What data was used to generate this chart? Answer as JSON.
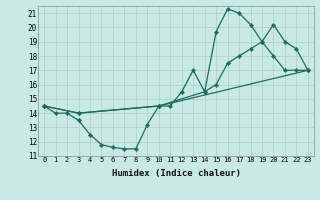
{
  "xlabel": "Humidex (Indice chaleur)",
  "xlim": [
    -0.5,
    23.5
  ],
  "ylim": [
    11,
    21.5
  ],
  "yticks": [
    11,
    12,
    13,
    14,
    15,
    16,
    17,
    18,
    19,
    20,
    21
  ],
  "xticks": [
    0,
    1,
    2,
    3,
    4,
    5,
    6,
    7,
    8,
    9,
    10,
    11,
    12,
    13,
    14,
    15,
    16,
    17,
    18,
    19,
    20,
    21,
    22,
    23
  ],
  "background_color": "#c8eae5",
  "grid_color": "#b0ccc8",
  "line_color": "#1a6b5e",
  "lines": [
    {
      "x": [
        0,
        1,
        2,
        3,
        4,
        5,
        6,
        7,
        8,
        9,
        10,
        11,
        12,
        13,
        14,
        15,
        16,
        17,
        18,
        19,
        20,
        21,
        22,
        23
      ],
      "y": [
        14.5,
        14.0,
        14.0,
        13.5,
        12.5,
        11.8,
        11.6,
        11.5,
        11.5,
        13.2,
        14.5,
        14.5,
        15.5,
        17.0,
        15.5,
        19.7,
        21.3,
        21.0,
        20.2,
        19.0,
        18.0,
        17.0,
        17.0,
        17.0
      ]
    },
    {
      "x": [
        0,
        3,
        10,
        14,
        15,
        16,
        17,
        18,
        19,
        20,
        21,
        22,
        23
      ],
      "y": [
        14.5,
        14.0,
        14.5,
        15.5,
        16.0,
        17.5,
        18.0,
        18.5,
        19.0,
        20.2,
        19.0,
        18.5,
        17.0
      ]
    },
    {
      "x": [
        0,
        3,
        10,
        23
      ],
      "y": [
        14.5,
        14.0,
        14.5,
        17.0
      ]
    }
  ]
}
